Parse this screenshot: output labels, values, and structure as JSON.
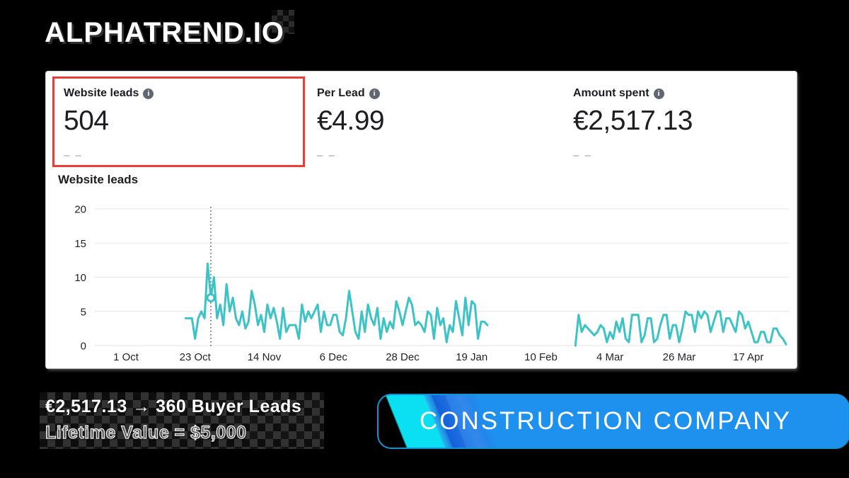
{
  "logo": {
    "text": "ALPHATREND.IO"
  },
  "icons": {
    "info_glyph": "i"
  },
  "stats": {
    "cards": [
      {
        "label": "Website leads",
        "value": "504",
        "sub": "– –",
        "highlighted": true
      },
      {
        "label": "Per Lead",
        "value": "€4.99",
        "sub": "– –",
        "highlighted": false
      },
      {
        "label": "Amount spent",
        "value": "€2,517.13",
        "sub": "– –",
        "highlighted": false
      }
    ]
  },
  "chart": {
    "title": "Website leads"
  },
  "chart_data": {
    "type": "line",
    "title": "Website leads",
    "series_name": "Website leads per day",
    "series_color": "#3cc3c5",
    "grid": true,
    "ylim": [
      0,
      20
    ],
    "y_ticks": [
      0,
      5,
      10,
      15,
      20
    ],
    "x_ticks": [
      {
        "label": "1 Oct",
        "day": 0
      },
      {
        "label": "23 Oct",
        "day": 22
      },
      {
        "label": "14 Nov",
        "day": 44
      },
      {
        "label": "6 Dec",
        "day": 66
      },
      {
        "label": "28 Dec",
        "day": 88
      },
      {
        "label": "19 Jan",
        "day": 110
      },
      {
        "label": "10 Feb",
        "day": 132
      },
      {
        "label": "4 Mar",
        "day": 154
      },
      {
        "label": "26 Mar",
        "day": 176
      },
      {
        "label": "17 Apr",
        "day": 198
      }
    ],
    "day_range": [
      -10,
      211
    ],
    "dotted_line_day": 27,
    "marker": {
      "day": 27,
      "value": 7
    },
    "segments": [
      {
        "start_day": 19,
        "values": [
          4,
          4,
          4,
          1,
          4,
          5,
          4,
          12,
          7,
          10,
          4,
          6,
          3,
          9,
          5,
          7,
          4,
          3,
          5,
          2.5,
          3.5,
          8,
          6,
          3,
          4.5,
          2,
          6,
          4,
          5.5,
          3.5,
          1,
          5.5,
          2,
          3,
          3,
          3,
          1,
          6,
          3.5,
          5,
          4,
          5,
          6,
          2,
          5,
          3,
          3,
          4.5,
          4.5,
          2,
          1.5,
          4,
          8,
          5,
          2,
          1,
          5,
          2,
          6,
          4,
          3,
          5.5,
          1,
          4,
          2,
          3.5,
          2.5,
          6.5,
          5,
          3,
          5,
          7,
          6,
          3,
          3.5,
          3,
          2,
          5,
          4.5,
          1,
          5.5,
          3,
          4,
          0.5,
          3,
          2,
          6.5,
          4,
          1.5,
          7,
          3,
          6.5,
          6,
          1,
          3.5,
          3.5,
          3
        ]
      },
      {
        "start_day": 143,
        "values": [
          0,
          4.5,
          2,
          3,
          2.5,
          2,
          1.5,
          2,
          3,
          2.5,
          0.5,
          2,
          1,
          3.5,
          2,
          4,
          1,
          0.5,
          4.5,
          4.5,
          4.5,
          0.5,
          1.5,
          4,
          4,
          0.5,
          1,
          3,
          4.5,
          4.5,
          1,
          3,
          3,
          0.5,
          2.5,
          5,
          4.5,
          4.5,
          2,
          5,
          4,
          5,
          4.5,
          2,
          3.5,
          5,
          5,
          2,
          4,
          4,
          3,
          2,
          5,
          4.5,
          2.5,
          3.5,
          2,
          0.5,
          0.5,
          2,
          2,
          0.5,
          0.5,
          2.5,
          2.5,
          1.5,
          1,
          0.2
        ]
      }
    ]
  },
  "overlay": {
    "headline": "€2,517.13 → 360 Buyer Leads",
    "subline": "Lifetime Value = $5,000"
  },
  "banner": {
    "text": "CONSTRUCTION COMPANY",
    "fill": "#1e90ee",
    "accent": "#0be0f2"
  }
}
